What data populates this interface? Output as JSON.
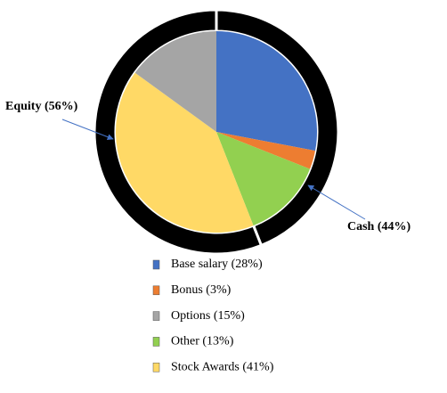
{
  "chart_data": [
    {
      "type": "donut",
      "categories": [
        "Cash (44%)",
        "Equity (56%)"
      ],
      "values": [
        44,
        56
      ],
      "color": "#000000"
    },
    {
      "type": "pie",
      "categories": [
        "Base salary (28%)",
        "Bonus (3%)",
        "Options (15%)",
        "Other (13%)",
        "Stock Awards (41%)"
      ],
      "values": [
        28,
        3,
        15,
        13,
        41
      ],
      "colors": [
        "#4472c4",
        "#ed7d31",
        "#a5a5a5",
        "#92d050",
        "#ffd966"
      ]
    }
  ]
}
